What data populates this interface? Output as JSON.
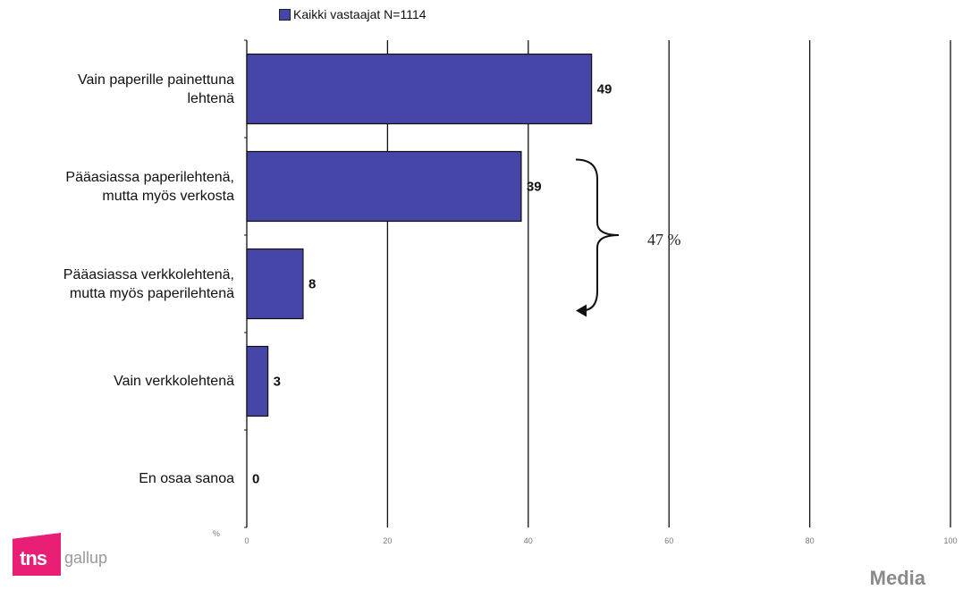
{
  "chart_data": {
    "type": "bar",
    "orientation": "horizontal",
    "categories": [
      "Vain paperille painettuna\nlehtenä",
      "Pääasiassa paperilehtenä,\nmutta myös verkosta",
      "Pääasiassa verkkolehtenä,\nmutta myös paperilehtenä",
      "Vain verkkolehtenä",
      "En osaa sanoa"
    ],
    "series": [
      {
        "name": "Kaikki vastaajat N=1114",
        "values": [
          49,
          39,
          8,
          3,
          0
        ],
        "color": "#4646a8"
      }
    ],
    "data_labels": [
      "49",
      "39",
      "8",
      "3",
      "0"
    ],
    "xlim": [
      0,
      100
    ],
    "xticks": [
      "0",
      "20",
      "40",
      "60",
      "80",
      "100"
    ],
    "xunit": "%",
    "grid": true,
    "legend_position": "top",
    "annotation": "47 %"
  },
  "branding": {
    "logo_mark": "tns",
    "logo_word": "gallup",
    "footer": "Media"
  }
}
